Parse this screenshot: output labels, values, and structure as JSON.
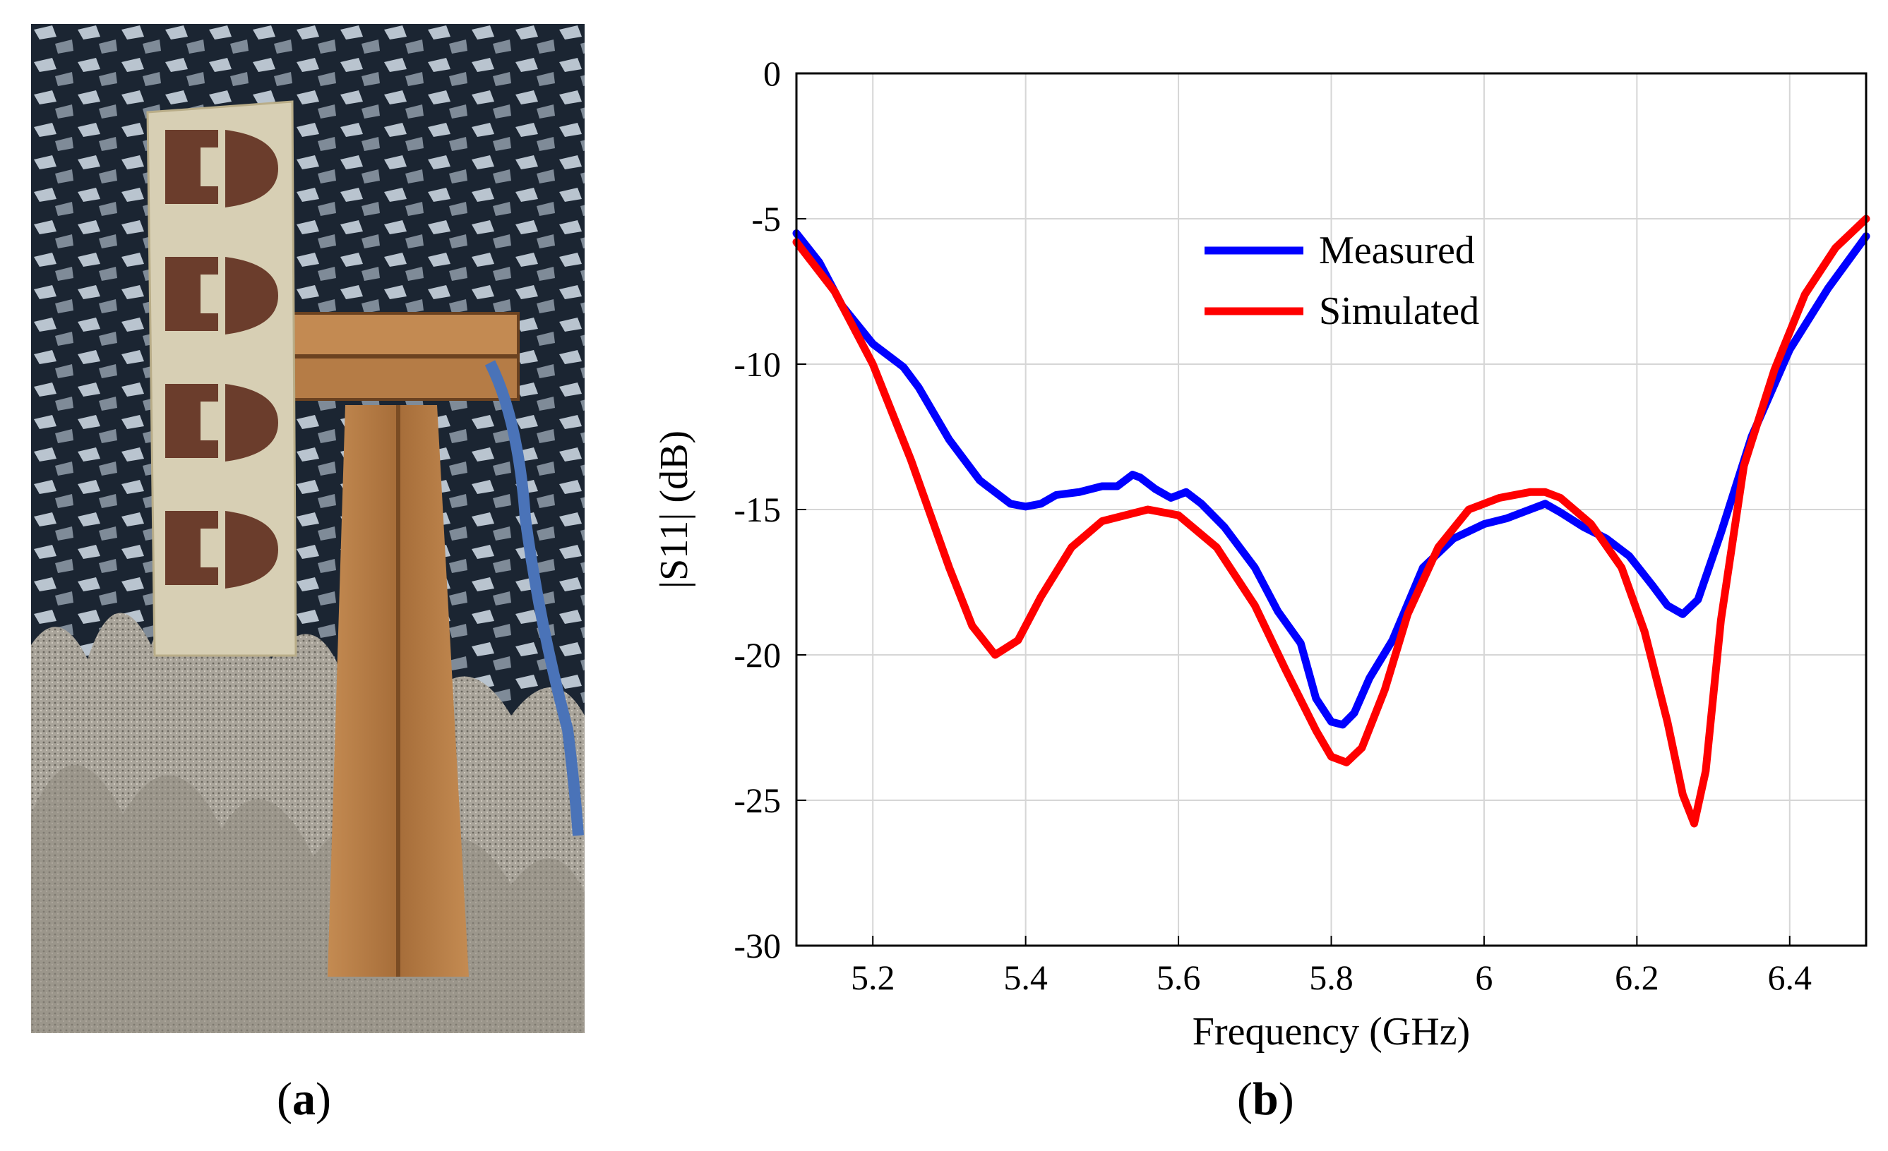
{
  "panels": {
    "a": {
      "label": "a"
    },
    "b": {
      "label": "b"
    }
  },
  "photo": {
    "description_icon": "antenna-photo-icon",
    "colors": {
      "absorber_dark": "#1b2532",
      "absorber_light": "#b9c4cf",
      "board": "#d7cfb4",
      "patch": "#6b3d2c",
      "wood": "#b07a45",
      "foam": "#a9a49a",
      "cable": "#4a73b8"
    }
  },
  "chart_data": {
    "type": "line",
    "xlabel": "Frequency (GHz)",
    "ylabel": "|S11| (dB)",
    "xlim": [
      5.1,
      6.5
    ],
    "ylim": [
      -30,
      0
    ],
    "xticks": [
      5.2,
      5.4,
      5.6,
      5.8,
      6,
      6.2,
      6.4
    ],
    "xtick_labels": [
      "5.2",
      "5.4",
      "5.6",
      "5.8",
      "6",
      "6.2",
      "6.4"
    ],
    "yticks": [
      0,
      -5,
      -10,
      -15,
      -20,
      -25,
      -30
    ],
    "ytick_labels": [
      "0",
      "-5",
      "-10",
      "-15",
      "-20",
      "-25",
      "-30"
    ],
    "grid": true,
    "legend": "upper-center",
    "series": [
      {
        "name": "Measured",
        "color": "#0000ff",
        "x": [
          5.1,
          5.13,
          5.16,
          5.2,
          5.24,
          5.26,
          5.3,
          5.34,
          5.38,
          5.4,
          5.42,
          5.44,
          5.47,
          5.5,
          5.52,
          5.54,
          5.55,
          5.57,
          5.59,
          5.61,
          5.63,
          5.66,
          5.7,
          5.73,
          5.76,
          5.78,
          5.8,
          5.815,
          5.83,
          5.85,
          5.88,
          5.92,
          5.96,
          6.0,
          6.03,
          6.06,
          6.08,
          6.1,
          6.13,
          6.16,
          6.19,
          6.22,
          6.24,
          6.26,
          6.28,
          6.31,
          6.35,
          6.4,
          6.45,
          6.5
        ],
        "y": [
          -5.5,
          -6.5,
          -8.0,
          -9.3,
          -10.1,
          -10.8,
          -12.6,
          -14.0,
          -14.8,
          -14.9,
          -14.8,
          -14.5,
          -14.4,
          -14.2,
          -14.2,
          -13.8,
          -13.9,
          -14.3,
          -14.6,
          -14.4,
          -14.8,
          -15.6,
          -17.0,
          -18.5,
          -19.6,
          -21.5,
          -22.3,
          -22.4,
          -22.0,
          -20.8,
          -19.5,
          -17.0,
          -16.0,
          -15.5,
          -15.3,
          -15.0,
          -14.8,
          -15.1,
          -15.6,
          -16.0,
          -16.6,
          -17.6,
          -18.3,
          -18.6,
          -18.1,
          -15.8,
          -12.5,
          -9.5,
          -7.4,
          -5.6
        ]
      },
      {
        "name": "Simulated",
        "color": "#ff0000",
        "x": [
          5.1,
          5.15,
          5.2,
          5.25,
          5.3,
          5.33,
          5.36,
          5.39,
          5.42,
          5.46,
          5.5,
          5.56,
          5.6,
          5.65,
          5.7,
          5.74,
          5.78,
          5.8,
          5.82,
          5.84,
          5.87,
          5.9,
          5.94,
          5.98,
          6.02,
          6.06,
          6.08,
          6.1,
          6.14,
          6.18,
          6.21,
          6.24,
          6.26,
          6.275,
          6.29,
          6.31,
          6.34,
          6.38,
          6.42,
          6.46,
          6.5
        ],
        "y": [
          -5.8,
          -7.5,
          -10.0,
          -13.3,
          -17.0,
          -19.0,
          -20.0,
          -19.5,
          -18.0,
          -16.3,
          -15.4,
          -15.0,
          -15.2,
          -16.3,
          -18.3,
          -20.5,
          -22.6,
          -23.5,
          -23.7,
          -23.2,
          -21.2,
          -18.6,
          -16.3,
          -15.0,
          -14.6,
          -14.4,
          -14.4,
          -14.6,
          -15.5,
          -17.0,
          -19.2,
          -22.3,
          -24.8,
          -25.8,
          -24.0,
          -18.8,
          -13.5,
          -10.2,
          -7.6,
          -6.0,
          -5.0
        ]
      }
    ]
  }
}
